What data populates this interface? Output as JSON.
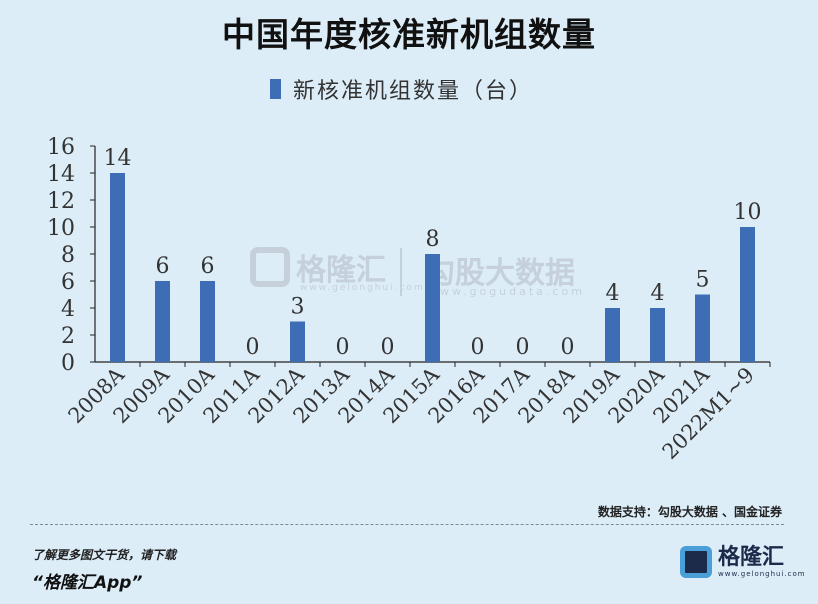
{
  "title": "中国年度核准新机组数量",
  "watermark": {
    "brand1": "格隆汇",
    "brand1_url": "www.gelonghui.com",
    "brand2": "勾股大数据",
    "brand2_url": "www.gogudata.com"
  },
  "source": "数据支持：勾股大数据 、国金证券",
  "footer": {
    "line1": "了解更多图文干货，请下载",
    "line2": "“格隆汇App”",
    "brand_name": "格隆汇",
    "brand_url": "www.gelonghui.com"
  },
  "colors": {
    "bar": "#3d6db4",
    "background": "#dcedf8"
  },
  "chart_data": {
    "type": "bar",
    "title": "中国年度核准新机组数量",
    "categories": [
      "2008A",
      "2009A",
      "2010A",
      "2011A",
      "2012A",
      "2013A",
      "2014A",
      "2015A",
      "2016A",
      "2017A",
      "2018A",
      "2019A",
      "2020A",
      "2021A",
      "2022M1~9"
    ],
    "series": [
      {
        "name": "新核准机组数量（台）",
        "values": [
          14,
          6,
          6,
          0,
          3,
          0,
          0,
          8,
          0,
          0,
          0,
          4,
          4,
          5,
          10
        ]
      }
    ],
    "yticks": [
      "0",
      "2",
      "4",
      "6",
      "8",
      "10",
      "12",
      "14",
      "16"
    ],
    "ylim": [
      0,
      16
    ],
    "grid": false,
    "legend": "top-center"
  }
}
